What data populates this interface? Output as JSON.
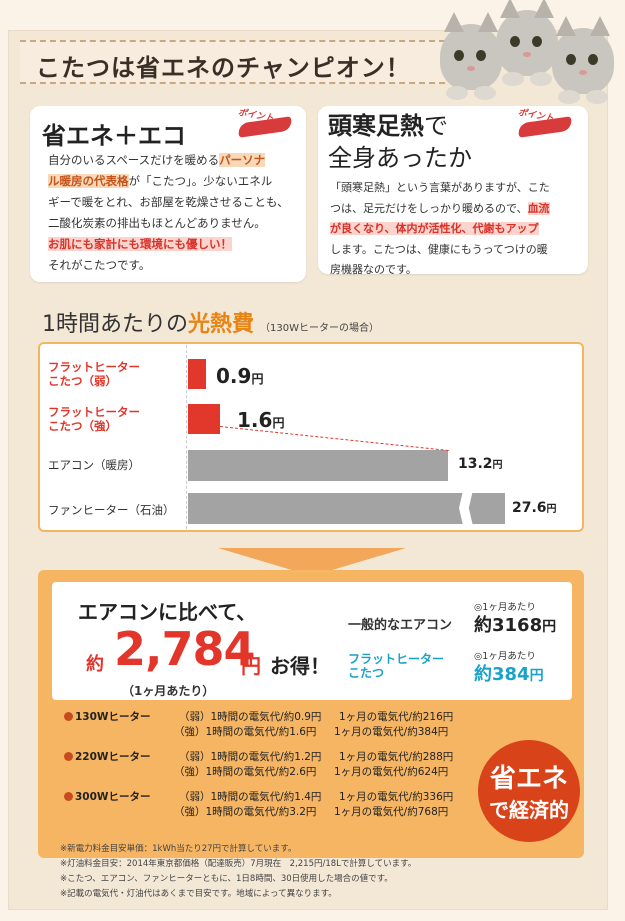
{
  "header": {
    "title": "こたつは省エネのチャンピオン！"
  },
  "card_eco": {
    "title": "省エネ＋エコ",
    "point": "ポイント",
    "t1": "自分のいるスペースだけを暖める",
    "t2": "パーソナ",
    "t3": "ル暖房の代表格",
    "t4": "が「こたつ」。少ないエネル",
    "t5": "ギーで暖をとれ、お部屋を乾燥させることも、",
    "t6": "二酸化炭素の排出もほとんどありません。",
    "t7": "お肌にも家計にも環境にも優しい！",
    "t8": "それがこたつです。"
  },
  "card_zukan": {
    "title1": "頭寒足熱",
    "title2": "で",
    "title3": "全身あったか",
    "point": "ポイント",
    "t1": "「頭寒足熱」という言葉がありますが、こた",
    "t2": "つは、足元だけをしっかり暖めるので、",
    "t3": "血流",
    "t4": "が良くなり、体内が活性化、代謝もアップ",
    "t5": "します。こたつは、健康にもうってつけの暖",
    "t6": "房機器なのです。"
  },
  "cost_section": {
    "title_a": "1時間あたりの",
    "title_b": "光熱費",
    "note": "（130Wヒーターの場合）"
  },
  "chart_data": {
    "type": "bar",
    "categories": [
      "フラットヒーター こたつ（弱）",
      "フラットヒーター こたつ（強）",
      "エアコン（暖房）",
      "ファンヒーター（石油）"
    ],
    "values": [
      0.9,
      1.6,
      13.2,
      27.6
    ],
    "unit": "円",
    "colors": [
      "#e2382c",
      "#e2382c",
      "#a3a3a3",
      "#a3a3a3"
    ],
    "axis_break": "ファンヒーター（石油）"
  },
  "labels": {
    "r1a": "フラットヒーター",
    "r1b": "こたつ（弱）",
    "r2a": "フラットヒーター",
    "r2b": "こたつ（強）",
    "r3": "エアコン（暖房）",
    "r4": "ファンヒーター（石油）",
    "v1": "0.9",
    "v2": "1.6",
    "v3": "13.2",
    "v4": "27.6",
    "yen": "円"
  },
  "savings": {
    "compare": "エアコンに比べて、",
    "yaku": "約",
    "amount": "2,784",
    "yen": "円",
    "otoku": "お得！",
    "per_month": "（1ヶ月あたり）",
    "ac_label": "一般的なエアコン",
    "ft_label1": "フラットヒーター",
    "ft_label2": "こたつ",
    "month_note": "◎1ヶ月あたり",
    "ac_value": "約3168",
    "ft_value": "約384",
    "value_yen": "円"
  },
  "heaters": [
    {
      "name": "130Wヒーター",
      "w_h": "（弱）1時間の電気代/約0.9円",
      "w_m": "1ヶ月の電気代/約216円",
      "s_h": "（強）1時間の電気代/約1.6円",
      "s_m": "1ヶ月の電気代/約384円"
    },
    {
      "name": "220Wヒーター",
      "w_h": "（弱）1時間の電気代/約1.2円",
      "w_m": "1ヶ月の電気代/約288円",
      "s_h": "（強）1時間の電気代/約2.6円",
      "s_m": "1ヶ月の電気代/約624円"
    },
    {
      "name": "300Wヒーター",
      "w_h": "（弱）1時間の電気代/約1.4円",
      "w_m": "1ヶ月の電気代/約336円",
      "s_h": "（強）1時間の電気代/約3.2円",
      "s_m": "1ヶ月の電気代/約768円"
    }
  ],
  "badge": {
    "l1": "省エネ",
    "l2": "で経済的"
  },
  "notes": [
    "※新電力料金目安単価：1kWh当たり27円で計算しています。",
    "※灯油料金目安：2014年東京都価格（配達販売）7月現在　2,215円/18Lで計算しています。",
    "※こたつ、エアコン、ファンヒーターともに、1日8時間、30日使用した場合の値です。",
    "※記載の電気代・灯油代はあくまで目安です。地域によって異なります。"
  ],
  "colors": {
    "accent_orange": "#f6b562",
    "accent_red": "#e2362b",
    "blue": "#1aa2c8"
  }
}
